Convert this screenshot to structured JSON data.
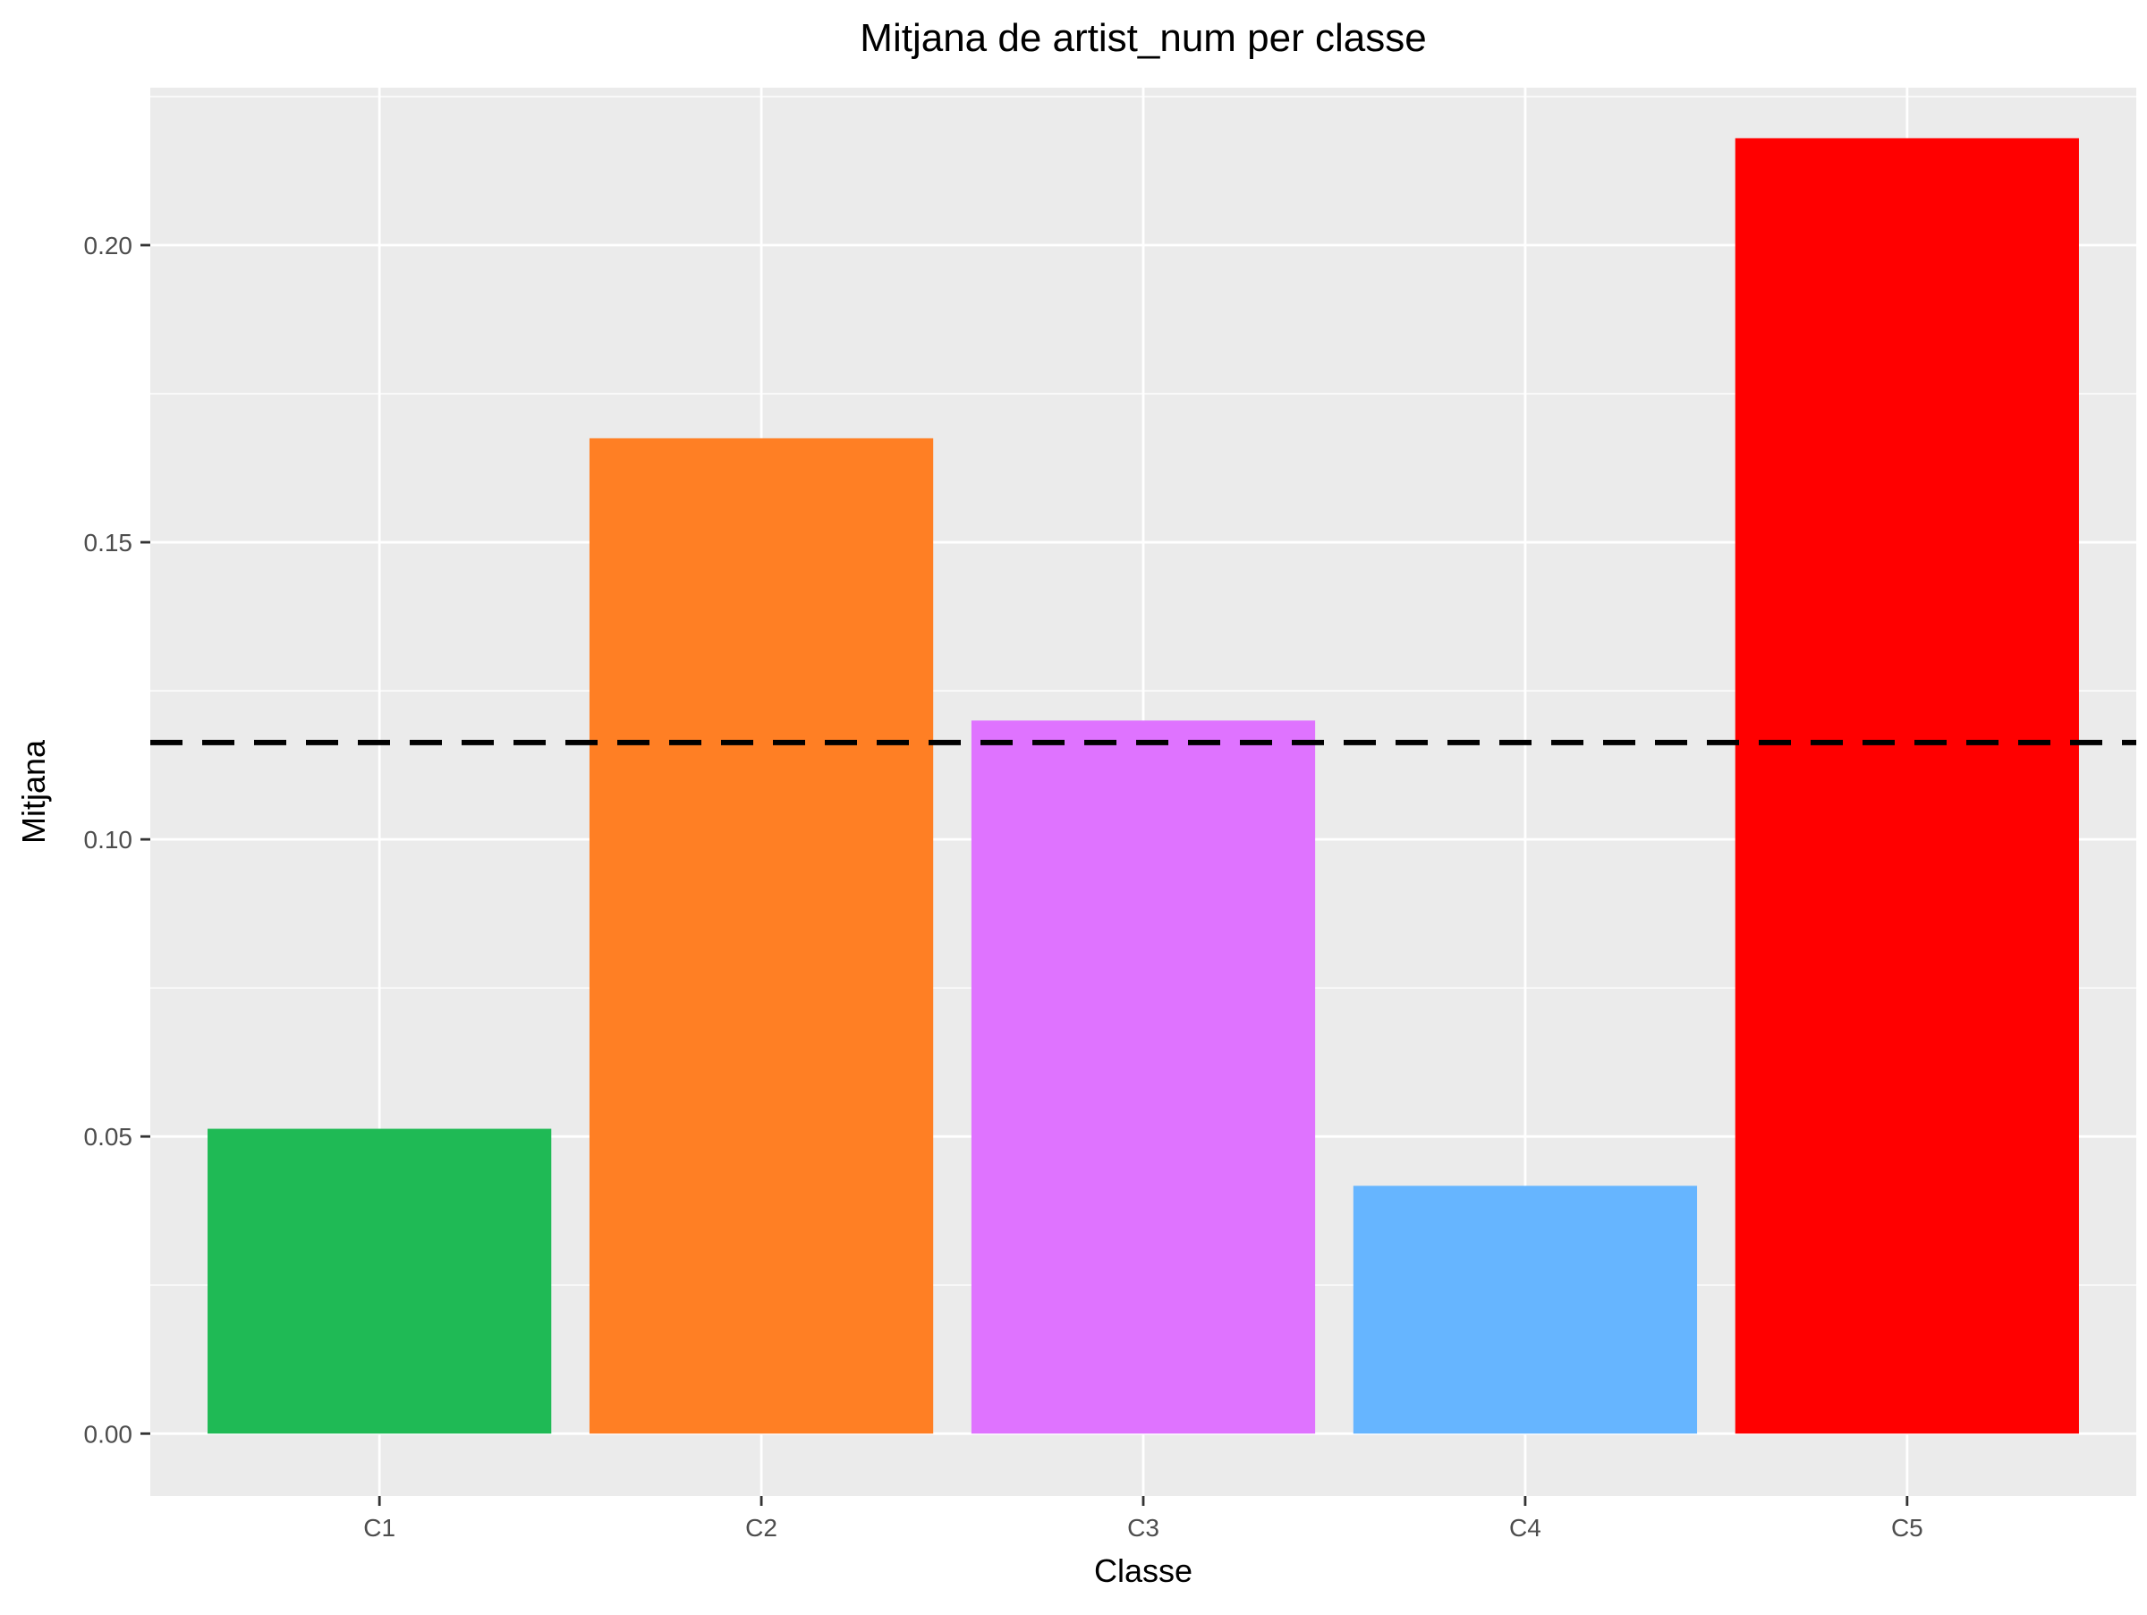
{
  "chart_data": {
    "type": "bar",
    "title": "Mitjana de artist_num per classe",
    "xlabel": "Classe",
    "ylabel": "Mitjana",
    "categories": [
      "C1",
      "C2",
      "C3",
      "C4",
      "C5"
    ],
    "values": [
      0.0513,
      0.1675,
      0.12,
      0.0417,
      0.218
    ],
    "colors": [
      "#1FBA55",
      "#FF7F24",
      "#DF73FF",
      "#66B5FF",
      "#FF0000"
    ],
    "reference_line": {
      "value": 0.1163,
      "style": "dashed",
      "color": "#000000"
    },
    "ylim": [
      -0.0105,
      0.2265
    ],
    "yticks": [
      0.0,
      0.05,
      0.1,
      0.15,
      0.2
    ],
    "ytick_labels": [
      "0.00",
      "0.05",
      "0.10",
      "0.15",
      "0.20"
    ],
    "grid": true,
    "panel_background": "#EBEBEB",
    "grid_color": "#FFFFFF",
    "axis_text_color": "#4D4D4D",
    "legend": "none"
  }
}
